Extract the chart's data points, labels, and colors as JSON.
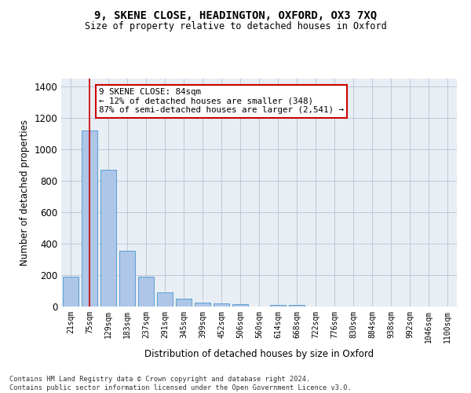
{
  "title": "9, SKENE CLOSE, HEADINGTON, OXFORD, OX3 7XQ",
  "subtitle": "Size of property relative to detached houses in Oxford",
  "xlabel": "Distribution of detached houses by size in Oxford",
  "ylabel": "Number of detached properties",
  "footnote": "Contains HM Land Registry data © Crown copyright and database right 2024.\nContains public sector information licensed under the Open Government Licence v3.0.",
  "bar_labels": [
    "21sqm",
    "75sqm",
    "129sqm",
    "183sqm",
    "237sqm",
    "291sqm",
    "345sqm",
    "399sqm",
    "452sqm",
    "506sqm",
    "560sqm",
    "614sqm",
    "668sqm",
    "722sqm",
    "776sqm",
    "830sqm",
    "884sqm",
    "938sqm",
    "992sqm",
    "1046sqm",
    "1100sqm"
  ],
  "bar_values": [
    190,
    1120,
    870,
    355,
    190,
    88,
    50,
    25,
    20,
    15,
    0,
    12,
    10,
    0,
    0,
    0,
    0,
    0,
    0,
    0,
    0
  ],
  "bar_color": "#aec6e8",
  "bar_edge_color": "#5a9fd4",
  "grid_color": "#c0c8d8",
  "bg_color": "#e8eef4",
  "vline_x": 1,
  "vline_color": "#cc0000",
  "annotation_text": "9 SKENE CLOSE: 84sqm\n← 12% of detached houses are smaller (348)\n87% of semi-detached houses are larger (2,541) →",
  "annotation_box_color": "#ffffff",
  "annotation_box_edge": "#cc0000",
  "ylim": [
    0,
    1450
  ],
  "yticks": [
    0,
    200,
    400,
    600,
    800,
    1000,
    1200,
    1400
  ]
}
